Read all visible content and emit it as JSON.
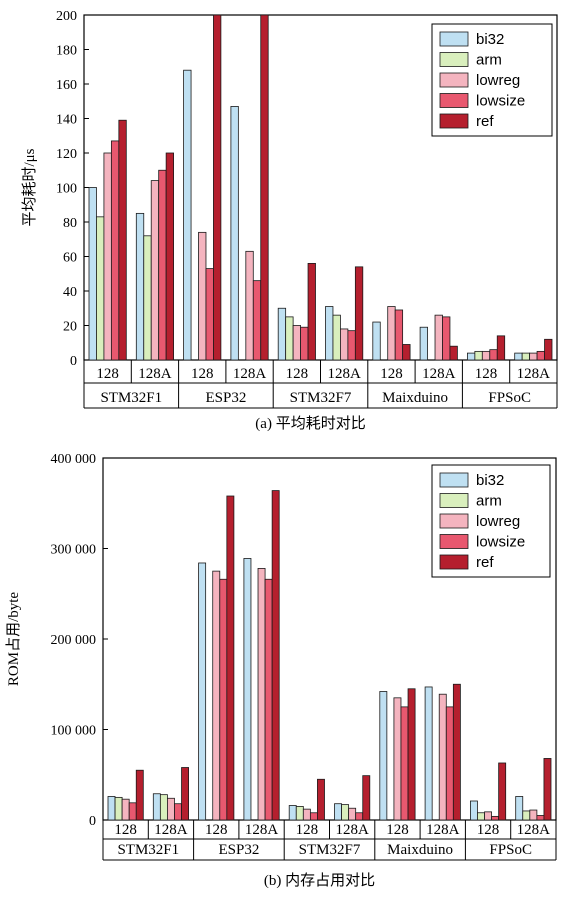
{
  "chart_data": [
    {
      "type": "bar",
      "panel": "a",
      "caption": "(a)  平均耗时对比",
      "ylabel": "平均耗时/μs",
      "ylim": [
        0,
        200
      ],
      "yticks": [
        "0",
        "20",
        "40",
        "60",
        "80",
        "100",
        "120",
        "140",
        "160",
        "180",
        "200"
      ],
      "ytick_values": [
        0,
        20,
        40,
        60,
        80,
        100,
        120,
        140,
        160,
        180,
        200
      ],
      "legend": [
        "bi32",
        "arm",
        "lowreg",
        "lowsize",
        "ref"
      ],
      "legend_position": "top-right",
      "groups": [
        "STM32F1",
        "ESP32",
        "STM32F7",
        "Maixduino",
        "FPSoC"
      ],
      "subgroups": [
        "128",
        "128A"
      ],
      "series": [
        {
          "name": "bi32",
          "values": [
            100,
            85,
            168,
            147,
            30,
            31,
            22,
            19,
            4,
            4
          ]
        },
        {
          "name": "arm",
          "values": [
            83,
            72,
            0,
            0,
            25,
            26,
            0,
            0,
            5,
            4
          ]
        },
        {
          "name": "lowreg",
          "values": [
            120,
            104,
            74,
            63,
            20,
            18,
            31,
            26,
            5,
            4
          ]
        },
        {
          "name": "lowsize",
          "values": [
            127,
            110,
            53,
            46,
            19,
            17,
            29,
            25,
            6,
            5
          ]
        },
        {
          "name": "ref",
          "values": [
            139,
            120,
            200,
            200,
            56,
            54,
            9,
            8,
            14,
            12
          ]
        }
      ]
    },
    {
      "type": "bar",
      "panel": "b",
      "caption": "(b)  内存占用对比",
      "ylabel": "ROM占用/byte",
      "ylim": [
        0,
        400000
      ],
      "yticks": [
        "0",
        "100 000",
        "200 000",
        "300 000",
        "400 000"
      ],
      "ytick_values": [
        0,
        100000,
        200000,
        300000,
        400000
      ],
      "legend": [
        "bi32",
        "arm",
        "lowreg",
        "lowsize",
        "ref"
      ],
      "legend_position": "top-right",
      "groups": [
        "STM32F1",
        "ESP32",
        "STM32F7",
        "Maixduino",
        "FPSoC"
      ],
      "subgroups": [
        "128",
        "128A"
      ],
      "series": [
        {
          "name": "bi32",
          "values": [
            26000,
            29000,
            284000,
            289000,
            16000,
            18000,
            142000,
            147000,
            21000,
            26000
          ]
        },
        {
          "name": "arm",
          "values": [
            25000,
            28000,
            0,
            0,
            15000,
            17000,
            0,
            0,
            8000,
            10000
          ]
        },
        {
          "name": "lowreg",
          "values": [
            23000,
            24000,
            275000,
            278000,
            12000,
            13000,
            135000,
            139000,
            9000,
            11000
          ]
        },
        {
          "name": "lowsize",
          "values": [
            19000,
            18000,
            266000,
            266000,
            8000,
            8000,
            125000,
            125000,
            4000,
            5000
          ]
        },
        {
          "name": "ref",
          "values": [
            55000,
            58000,
            358000,
            364000,
            45000,
            49000,
            145000,
            150000,
            63000,
            68000
          ]
        }
      ]
    }
  ],
  "colors": {
    "bi32": "#bfe0f2",
    "arm": "#d9efbd",
    "lowreg": "#f4b4bf",
    "lowsize": "#e8586f",
    "ref": "#b51f2e"
  }
}
